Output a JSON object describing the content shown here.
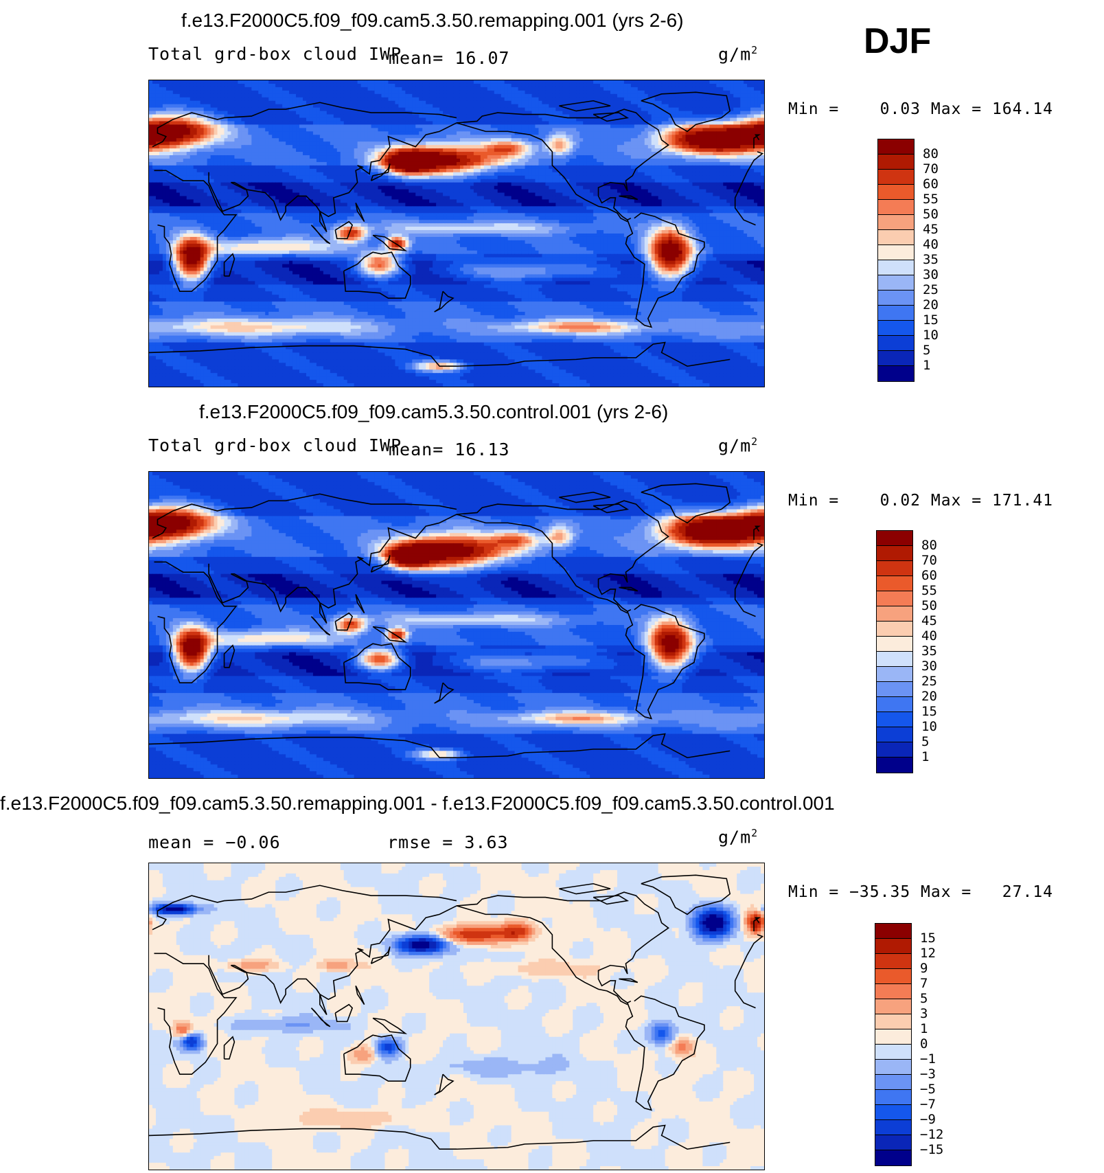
{
  "season_label": "DJF",
  "colors": {
    "abs_scale": [
      "#00008b",
      "#0a26b8",
      "#0c3ed6",
      "#1557ec",
      "#3f76f2",
      "#6b93f4",
      "#9ab6f6",
      "#cfe0fb",
      "#fcecdc",
      "#fbcdb0",
      "#f7a27e",
      "#f47c55",
      "#ea5a2b",
      "#cf3411",
      "#b01a02",
      "#8b0000"
    ],
    "diff_scale": [
      "#00008b",
      "#0a26b8",
      "#0c3ed6",
      "#1557ec",
      "#3f76f2",
      "#6b93f4",
      "#9ab6f6",
      "#cfe0fb",
      "#fcecdc",
      "#fbcdb0",
      "#f7a27e",
      "#f47c55",
      "#ea5a2b",
      "#cf3411",
      "#b01a02",
      "#8b0000"
    ],
    "coast": "#000000"
  },
  "panels": [
    {
      "title": "f.e13.F2000C5.f09_f09.cam5.3.50.remapping.001 (yrs 2-6)",
      "left_label": "Total grd-box cloud IWP",
      "stat_text": "mean=   16.07",
      "units": "g/m",
      "units_exp": "2",
      "minmax": "Min =    0.03 Max = 164.14"
    },
    {
      "title": "f.e13.F2000C5.f09_f09.cam5.3.50.control.001 (yrs 2-6)",
      "left_label": "Total grd-box cloud IWP",
      "stat_text": "mean=   16.13",
      "units": "g/m",
      "units_exp": "2",
      "minmax": "Min =    0.02 Max = 171.41"
    },
    {
      "title": "f.e13.F2000C5.f09_f09.cam5.3.50.remapping.001 - f.e13.F2000C5.f09_f09.cam5.3.50.control.001",
      "left_label": "mean =   −0.06",
      "stat_text": "rmse =    3.63",
      "units": "g/m",
      "units_exp": "2",
      "minmax": "Min = −35.35 Max =   27.14"
    }
  ],
  "chart_data": [
    {
      "type": "heatmap",
      "title": "f.e13.F2000C5.f09_f09.cam5.3.50.remapping.001 (yrs 2-6)",
      "variable": "Total grd-box cloud IWP",
      "units": "g/m2",
      "mean": 16.07,
      "min": 0.03,
      "max": 164.14,
      "contour_levels": [
        1,
        5,
        10,
        15,
        20,
        25,
        30,
        35,
        40,
        45,
        50,
        55,
        60,
        70,
        80
      ],
      "blobs": [
        {
          "lon": 10,
          "lat": 60,
          "rx": 26,
          "ry": 9,
          "v": 85
        },
        {
          "lon": 170,
          "lat": 43,
          "rx": 30,
          "ry": 8,
          "v": 80
        },
        {
          "lon": 152,
          "lat": 42,
          "rx": 12,
          "ry": 6,
          "v": 82
        },
        {
          "lon": 330,
          "lat": 55,
          "rx": 28,
          "ry": 8,
          "v": 88
        },
        {
          "lon": 25,
          "lat": -15,
          "rx": 10,
          "ry": 12,
          "v": 85
        },
        {
          "lon": 305,
          "lat": -12,
          "rx": 12,
          "ry": 14,
          "v": 82
        },
        {
          "lon": 135,
          "lat": -18,
          "rx": 12,
          "ry": 7,
          "v": 52
        },
        {
          "lon": 118,
          "lat": 0,
          "rx": 9,
          "ry": 5,
          "v": 52
        },
        {
          "lon": 145,
          "lat": -6,
          "rx": 6,
          "ry": 4,
          "v": 62
        },
        {
          "lon": 210,
          "lat": 50,
          "rx": 14,
          "ry": 5,
          "v": 38
        },
        {
          "lon": 240,
          "lat": 52,
          "rx": 8,
          "ry": 6,
          "v": 35
        },
        {
          "lon": 70,
          "lat": -8,
          "rx": 40,
          "ry": 5,
          "v": 28
        },
        {
          "lon": 190,
          "lat": 3,
          "rx": 60,
          "ry": 4,
          "v": 20
        },
        {
          "lon": 220,
          "lat": -22,
          "rx": 45,
          "ry": 6,
          "v": 22
        },
        {
          "lon": 250,
          "lat": -55,
          "rx": 40,
          "ry": 4,
          "v": 36
        },
        {
          "lon": 170,
          "lat": -78,
          "rx": 14,
          "ry": 3,
          "v": 40
        },
        {
          "lon": 60,
          "lat": -55,
          "rx": 70,
          "ry": 5,
          "v": 26
        }
      ]
    },
    {
      "type": "heatmap",
      "title": "f.e13.F2000C5.f09_f09.cam5.3.50.control.001 (yrs 2-6)",
      "variable": "Total grd-box cloud IWP",
      "units": "g/m2",
      "mean": 16.13,
      "min": 0.02,
      "max": 171.41,
      "contour_levels": [
        1,
        5,
        10,
        15,
        20,
        25,
        30,
        35,
        40,
        45,
        50,
        55,
        60,
        70,
        80
      ],
      "blobs": [
        {
          "lon": 10,
          "lat": 60,
          "rx": 26,
          "ry": 9,
          "v": 88
        },
        {
          "lon": 175,
          "lat": 43,
          "rx": 30,
          "ry": 9,
          "v": 86
        },
        {
          "lon": 152,
          "lat": 40,
          "rx": 12,
          "ry": 6,
          "v": 84
        },
        {
          "lon": 330,
          "lat": 55,
          "rx": 28,
          "ry": 9,
          "v": 92
        },
        {
          "lon": 25,
          "lat": -15,
          "rx": 10,
          "ry": 12,
          "v": 86
        },
        {
          "lon": 305,
          "lat": -12,
          "rx": 12,
          "ry": 14,
          "v": 80
        },
        {
          "lon": 135,
          "lat": -20,
          "rx": 12,
          "ry": 6,
          "v": 55
        },
        {
          "lon": 118,
          "lat": 0,
          "rx": 9,
          "ry": 5,
          "v": 48
        },
        {
          "lon": 145,
          "lat": -6,
          "rx": 6,
          "ry": 4,
          "v": 58
        },
        {
          "lon": 215,
          "lat": 50,
          "rx": 14,
          "ry": 5,
          "v": 36
        },
        {
          "lon": 240,
          "lat": 52,
          "rx": 8,
          "ry": 6,
          "v": 34
        },
        {
          "lon": 70,
          "lat": -8,
          "rx": 40,
          "ry": 5,
          "v": 27
        },
        {
          "lon": 190,
          "lat": 3,
          "rx": 60,
          "ry": 4,
          "v": 20
        },
        {
          "lon": 220,
          "lat": -22,
          "rx": 45,
          "ry": 6,
          "v": 20
        },
        {
          "lon": 250,
          "lat": -55,
          "rx": 40,
          "ry": 4,
          "v": 32
        },
        {
          "lon": 170,
          "lat": -76,
          "rx": 14,
          "ry": 3,
          "v": 34
        },
        {
          "lon": 60,
          "lat": -55,
          "rx": 70,
          "ry": 5,
          "v": 24
        }
      ]
    },
    {
      "type": "heatmap",
      "title": "f.e13.F2000C5.f09_f09.cam5.3.50.remapping.001 - f.e13.F2000C5.f09_f09.cam5.3.50.control.001",
      "units": "g/m2",
      "mean": -0.06,
      "rmse": 3.63,
      "min": -35.35,
      "max": 27.14,
      "contour_levels": [
        -15,
        -12,
        -9,
        -7,
        -5,
        -3,
        -1,
        0,
        1,
        3,
        5,
        7,
        9,
        12,
        15
      ],
      "blobs": [
        {
          "lon": 15,
          "lat": 63,
          "rx": 12,
          "ry": 3,
          "v": -18
        },
        {
          "lon": 160,
          "lat": 42,
          "rx": 14,
          "ry": 5,
          "v": -18
        },
        {
          "lon": 330,
          "lat": 55,
          "rx": 10,
          "ry": 8,
          "v": -20
        },
        {
          "lon": 190,
          "lat": 48,
          "rx": 18,
          "ry": 5,
          "v": 12
        },
        {
          "lon": 215,
          "lat": 50,
          "rx": 10,
          "ry": 5,
          "v": 10
        },
        {
          "lon": 355,
          "lat": 55,
          "rx": 5,
          "ry": 6,
          "v": 14
        },
        {
          "lon": 25,
          "lat": -15,
          "rx": 6,
          "ry": 5,
          "v": -12
        },
        {
          "lon": 20,
          "lat": -8,
          "rx": 5,
          "ry": 4,
          "v": 8
        },
        {
          "lon": 300,
          "lat": -10,
          "rx": 7,
          "ry": 6,
          "v": -9
        },
        {
          "lon": 312,
          "lat": -18,
          "rx": 6,
          "ry": 5,
          "v": 6
        },
        {
          "lon": 140,
          "lat": -18,
          "rx": 7,
          "ry": 5,
          "v": -10
        },
        {
          "lon": 125,
          "lat": -22,
          "rx": 8,
          "ry": 5,
          "v": 5
        },
        {
          "lon": 110,
          "lat": 30,
          "rx": 10,
          "ry": 3,
          "v": 5
        },
        {
          "lon": 60,
          "lat": 30,
          "rx": 14,
          "ry": 3,
          "v": 5
        },
        {
          "lon": 120,
          "lat": -60,
          "rx": 30,
          "ry": 5,
          "v": 3
        },
        {
          "lon": 230,
          "lat": 28,
          "rx": 35,
          "ry": 4,
          "v": 2
        },
        {
          "lon": 200,
          "lat": -30,
          "rx": 40,
          "ry": 6,
          "v": -2
        },
        {
          "lon": 80,
          "lat": -5,
          "rx": 30,
          "ry": 4,
          "v": -3
        }
      ]
    }
  ]
}
